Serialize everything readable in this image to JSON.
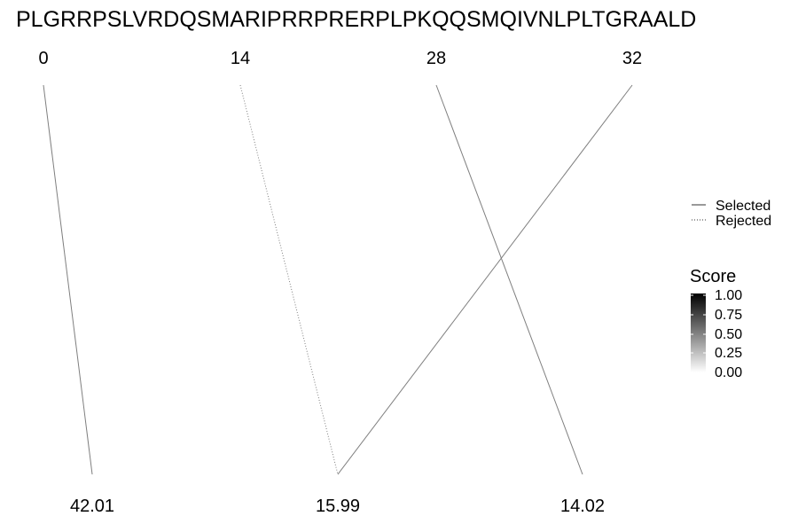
{
  "chart_data": {
    "type": "line",
    "title": "PLGRRPSLVRDQSMARIPRRPRERPLPKQQSMQIVNLPLTGRAALD",
    "top_labels": [
      "0",
      "14",
      "28",
      "32"
    ],
    "bottom_labels": [
      "42.01",
      "15.99",
      "14.02"
    ],
    "links": [
      {
        "from": "0",
        "to": "42.01",
        "status": "Selected",
        "score": 0.5
      },
      {
        "from": "14",
        "to": "15.99",
        "status": "Rejected",
        "score": 0.5
      },
      {
        "from": "28",
        "to": "14.02",
        "status": "Selected",
        "score": 0.5
      },
      {
        "from": "32",
        "to": "15.99",
        "status": "Selected",
        "score": 0.5
      }
    ],
    "legend_linetype": {
      "entries": [
        "Selected",
        "Rejected"
      ]
    },
    "legend_score": {
      "title": "Score",
      "ticks": [
        "1.00",
        "0.75",
        "0.50",
        "0.25",
        "0.00"
      ],
      "range": [
        0,
        1
      ]
    },
    "grid": false,
    "legend_position": "right",
    "colors": {
      "line": "#7f7f7f",
      "text": "#000000",
      "background": "#ffffff",
      "gradient_high": "#000000",
      "gradient_low": "#ffffff"
    }
  }
}
